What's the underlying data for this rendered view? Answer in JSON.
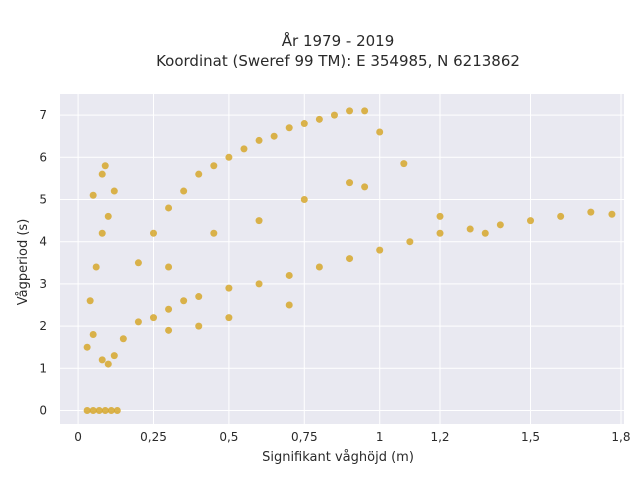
{
  "chart_data": {
    "type": "scatter",
    "title_line1": "År 1979 - 2019",
    "title_line2": "Koordinat (Sweref 99 TM): E 354985, N 6213862",
    "xlabel": "Signifikant våghöjd (m)",
    "ylabel": "Vågperiod (s)",
    "xlim": [
      -0.06,
      1.81
    ],
    "ylim": [
      -0.32,
      7.5
    ],
    "x_ticks": [
      0,
      0.25,
      0.5,
      0.75,
      1,
      1.2,
      1.5,
      1.8
    ],
    "x_tick_labels": [
      "0",
      "0,25",
      "0,5",
      "0,75",
      "1",
      "1,2",
      "1,5",
      "1,8"
    ],
    "y_ticks": [
      0,
      1,
      2,
      3,
      4,
      5,
      6,
      7
    ],
    "y_tick_labels": [
      "0",
      "1",
      "2",
      "3",
      "4",
      "5",
      "6",
      "7"
    ],
    "grid": true,
    "background": "#e9e9f1",
    "marker_color": "#d4a21f",
    "series": [
      {
        "values": [
          [
            0.03,
            0
          ],
          [
            0.05,
            0
          ],
          [
            0.07,
            0
          ],
          [
            0.09,
            0
          ],
          [
            0.11,
            0
          ],
          [
            0.13,
            0
          ],
          [
            0.03,
            1.5
          ],
          [
            0.05,
            1.8
          ],
          [
            0.08,
            1.2
          ],
          [
            0.1,
            1.1
          ],
          [
            0.12,
            1.3
          ],
          [
            0.04,
            2.6
          ],
          [
            0.06,
            3.4
          ],
          [
            0.08,
            4.2
          ],
          [
            0.1,
            4.6
          ],
          [
            0.05,
            5.1
          ],
          [
            0.08,
            5.6
          ],
          [
            0.09,
            5.8
          ],
          [
            0.12,
            5.2
          ],
          [
            0.15,
            1.7
          ],
          [
            0.2,
            2.1
          ],
          [
            0.25,
            2.2
          ],
          [
            0.3,
            2.4
          ],
          [
            0.35,
            2.6
          ],
          [
            0.4,
            2.7
          ],
          [
            0.5,
            2.9
          ],
          [
            0.6,
            3.0
          ],
          [
            0.7,
            3.2
          ],
          [
            0.8,
            3.4
          ],
          [
            0.9,
            3.6
          ],
          [
            1.0,
            3.8
          ],
          [
            1.1,
            4.0
          ],
          [
            1.2,
            4.2
          ],
          [
            1.3,
            4.3
          ],
          [
            1.4,
            4.4
          ],
          [
            1.5,
            4.5
          ],
          [
            1.6,
            4.6
          ],
          [
            1.7,
            4.7
          ],
          [
            1.77,
            4.65
          ],
          [
            0.2,
            3.5
          ],
          [
            0.25,
            4.2
          ],
          [
            0.3,
            4.8
          ],
          [
            0.35,
            5.2
          ],
          [
            0.4,
            5.6
          ],
          [
            0.45,
            5.8
          ],
          [
            0.5,
            6.0
          ],
          [
            0.55,
            6.2
          ],
          [
            0.6,
            6.4
          ],
          [
            0.65,
            6.5
          ],
          [
            0.7,
            6.7
          ],
          [
            0.75,
            6.8
          ],
          [
            0.8,
            6.9
          ],
          [
            0.85,
            7.0
          ],
          [
            0.9,
            7.1
          ],
          [
            0.95,
            7.1
          ],
          [
            1.0,
            6.6
          ],
          [
            1.08,
            5.85
          ],
          [
            0.3,
            3.4
          ],
          [
            0.45,
            4.2
          ],
          [
            0.6,
            4.5
          ],
          [
            0.75,
            5.0
          ],
          [
            0.9,
            5.4
          ],
          [
            0.95,
            5.3
          ],
          [
            1.2,
            4.6
          ],
          [
            1.35,
            4.2
          ],
          [
            0.7,
            2.5
          ],
          [
            0.5,
            2.2
          ],
          [
            0.4,
            2.0
          ],
          [
            0.3,
            1.9
          ]
        ]
      }
    ]
  }
}
